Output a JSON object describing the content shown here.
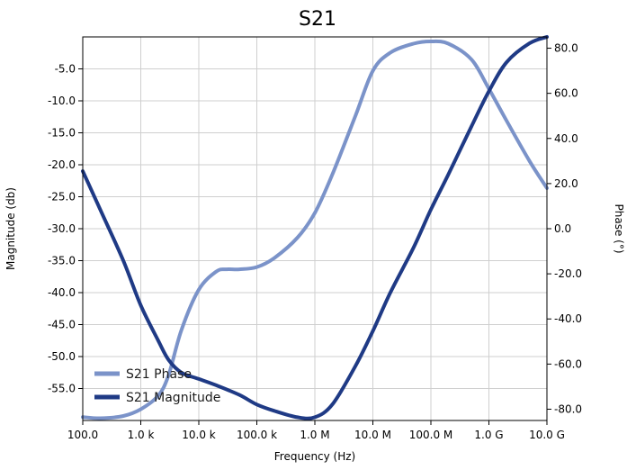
{
  "chart_data": {
    "type": "line",
    "title": "S21",
    "xlabel": "Frequency (Hz)",
    "ylabel": "Magnitude (db)",
    "y2label": "Phase (°)",
    "xscale": "log",
    "xlim": [
      100,
      10000000000
    ],
    "ylim": [
      -60,
      0
    ],
    "y2lim": [
      -85,
      85
    ],
    "x_ticks": [
      {
        "value": 100,
        "label": "100.0"
      },
      {
        "value": 1000,
        "label": "1.0 k"
      },
      {
        "value": 10000,
        "label": "10.0 k"
      },
      {
        "value": 100000,
        "label": "100.0 k"
      },
      {
        "value": 1000000,
        "label": "1.0 M"
      },
      {
        "value": 10000000,
        "label": "10.0 M"
      },
      {
        "value": 100000000,
        "label": "100.0 M"
      },
      {
        "value": 1000000000,
        "label": "1.0 G"
      },
      {
        "value": 10000000000,
        "label": "10.0 G"
      }
    ],
    "y_ticks": [
      {
        "value": -5,
        "label": "-5.0"
      },
      {
        "value": -10,
        "label": "-10.0"
      },
      {
        "value": -15,
        "label": "-15.0"
      },
      {
        "value": -20,
        "label": "-20.0"
      },
      {
        "value": -25,
        "label": "-25.0"
      },
      {
        "value": -30,
        "label": "-30.0"
      },
      {
        "value": -35,
        "label": "-35.0"
      },
      {
        "value": -40,
        "label": "-40.0"
      },
      {
        "value": -45,
        "label": "-45.0"
      },
      {
        "value": -50,
        "label": "-50.0"
      },
      {
        "value": -55,
        "label": "-55.0"
      }
    ],
    "y2_ticks": [
      {
        "value": 80,
        "label": "80.0"
      },
      {
        "value": 60,
        "label": "60.0"
      },
      {
        "value": 40,
        "label": "40.0"
      },
      {
        "value": 20,
        "label": "20.0"
      },
      {
        "value": 0,
        "label": "0.0"
      },
      {
        "value": -20,
        "label": "-20.0"
      },
      {
        "value": -40,
        "label": "-40.0"
      },
      {
        "value": -60,
        "label": "-60.0"
      },
      {
        "value": -80,
        "label": "-80.0"
      }
    ],
    "grid": true,
    "legend_position": "bottom-left",
    "series": [
      {
        "name": "S21 Phase",
        "axis": "right",
        "color": "#7b93c9",
        "x": [
          100,
          200,
          500,
          1000,
          2000,
          3000,
          5000,
          10000,
          20000,
          30000,
          50000,
          100000,
          200000,
          500000,
          1000000,
          2000000,
          5000000,
          10000000,
          20000000,
          50000000,
          100000000,
          200000000,
          500000000,
          1000000000,
          2000000000,
          5000000000,
          10000000000
        ],
        "y": [
          -83.5,
          -84,
          -83,
          -80,
          -74,
          -65,
          -45,
          -27,
          -19,
          -18,
          -18,
          -17,
          -13,
          -4,
          7,
          24,
          50,
          70,
          78,
          82,
          83,
          82,
          75,
          62,
          48,
          30,
          18
        ]
      },
      {
        "name": "S21 Magnitude",
        "axis": "left",
        "color": "#1f3a85",
        "x": [
          100,
          200,
          500,
          1000,
          2000,
          3000,
          5000,
          10000,
          20000,
          50000,
          100000,
          200000,
          500000,
          1000000,
          2000000,
          5000000,
          10000000,
          20000000,
          50000000,
          100000000,
          200000000,
          500000000,
          1000000000,
          2000000000,
          5000000000,
          10000000000
        ],
        "y": [
          -21,
          -27,
          -35,
          -42,
          -47.5,
          -50.5,
          -52.5,
          -53.5,
          -54.5,
          -56,
          -57.5,
          -58.5,
          -59.5,
          -59.5,
          -57.5,
          -51.5,
          -46,
          -40,
          -33,
          -27,
          -21.5,
          -14,
          -8.5,
          -4,
          -1,
          0
        ]
      }
    ]
  }
}
